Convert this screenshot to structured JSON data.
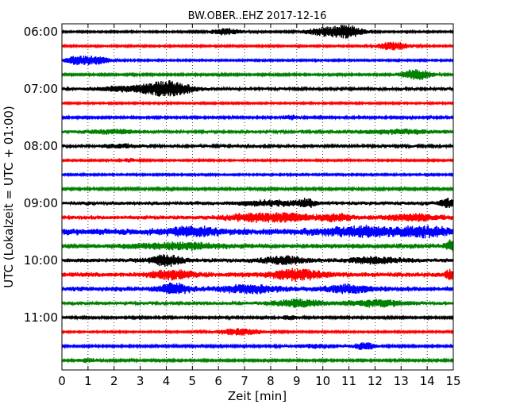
{
  "chart_data": {
    "type": "line",
    "title": "BW.OBER..EHZ 2017-12-16",
    "xlabel": "Zeit  [min]",
    "ylabel": "UTC (Lokalzeit = UTC + 01:00)",
    "xlim": [
      0,
      15
    ],
    "x_ticks": [
      "0",
      "1",
      "2",
      "3",
      "4",
      "5",
      "6",
      "7",
      "8",
      "9",
      "10",
      "11",
      "12",
      "13",
      "14",
      "15"
    ],
    "y_ticks": [
      {
        "label": "06:00",
        "row": 0
      },
      {
        "label": "07:00",
        "row": 4
      },
      {
        "label": "08:00",
        "row": 8
      },
      {
        "label": "09:00",
        "row": 12
      },
      {
        "label": "10:00",
        "row": 16
      },
      {
        "label": "11:00",
        "row": 20
      }
    ],
    "trace_interval_min": 15,
    "trace_colors": [
      "#000000",
      "#ff0000",
      "#0000ff",
      "#008000"
    ],
    "grid": "vertical-dotted",
    "traces": [
      {
        "start": "06:00",
        "base": 0.1,
        "events": [
          [
            6.3,
            0.6,
            0.45
          ],
          [
            10.1,
            0.8,
            0.55
          ],
          [
            11.0,
            0.6,
            0.7
          ]
        ]
      },
      {
        "start": "06:15",
        "base": 0.1,
        "events": [
          [
            12.7,
            0.6,
            0.55
          ]
        ]
      },
      {
        "start": "06:30",
        "base": 0.1,
        "events": [
          [
            0.6,
            0.5,
            0.55
          ],
          [
            1.4,
            0.5,
            0.5
          ]
        ]
      },
      {
        "start": "06:45",
        "base": 0.12,
        "events": [
          [
            13.6,
            0.6,
            0.7
          ]
        ]
      },
      {
        "start": "07:00",
        "base": 0.18,
        "events": [
          [
            4.1,
            0.9,
            0.95
          ],
          [
            2.5,
            1.2,
            0.3
          ]
        ]
      },
      {
        "start": "07:15",
        "base": 0.1,
        "events": []
      },
      {
        "start": "07:30",
        "base": 0.12,
        "events": [
          [
            8.8,
            0.3,
            0.3
          ]
        ]
      },
      {
        "start": "07:45",
        "base": 0.18,
        "events": [
          [
            2.0,
            1.0,
            0.25
          ],
          [
            13.0,
            1.5,
            0.25
          ]
        ]
      },
      {
        "start": "08:00",
        "base": 0.18,
        "events": [
          [
            2.2,
            0.6,
            0.25
          ]
        ]
      },
      {
        "start": "08:15",
        "base": 0.1,
        "events": [
          [
            2.6,
            0.3,
            0.25
          ]
        ]
      },
      {
        "start": "08:30",
        "base": 0.1,
        "events": []
      },
      {
        "start": "08:45",
        "base": 0.14,
        "events": []
      },
      {
        "start": "09:00",
        "base": 0.22,
        "events": [
          [
            9.4,
            0.3,
            0.45
          ],
          [
            14.8,
            0.3,
            0.6
          ],
          [
            8.0,
            1.2,
            0.3
          ]
        ]
      },
      {
        "start": "09:15",
        "base": 0.25,
        "events": [
          [
            7.3,
            1.0,
            0.45
          ],
          [
            8.8,
            0.8,
            0.4
          ],
          [
            10.5,
            0.7,
            0.4
          ],
          [
            13.5,
            1.0,
            0.4
          ]
        ]
      },
      {
        "start": "09:30",
        "base": 0.4,
        "events": [
          [
            5.0,
            0.8,
            0.5
          ],
          [
            11.5,
            1.5,
            0.5
          ],
          [
            14.0,
            1.0,
            0.45
          ]
        ]
      },
      {
        "start": "09:45",
        "base": 0.3,
        "events": [
          [
            14.9,
            0.2,
            0.6
          ],
          [
            4.5,
            1.5,
            0.35
          ]
        ]
      },
      {
        "start": "10:00",
        "base": 0.25,
        "events": [
          [
            4.0,
            0.6,
            0.7
          ],
          [
            8.5,
            0.8,
            0.45
          ],
          [
            12.0,
            1.0,
            0.35
          ]
        ]
      },
      {
        "start": "10:15",
        "base": 0.3,
        "events": [
          [
            4.2,
            0.8,
            0.5
          ],
          [
            9.0,
            1.0,
            0.6
          ],
          [
            14.9,
            0.2,
            0.6
          ]
        ]
      },
      {
        "start": "10:30",
        "base": 0.3,
        "events": [
          [
            4.3,
            0.6,
            0.6
          ],
          [
            7.2,
            1.0,
            0.45
          ],
          [
            11.0,
            0.8,
            0.45
          ]
        ]
      },
      {
        "start": "10:45",
        "base": 0.2,
        "events": [
          [
            9.0,
            1.0,
            0.45
          ],
          [
            12.0,
            1.2,
            0.4
          ]
        ]
      },
      {
        "start": "11:00",
        "base": 0.12,
        "events": [
          [
            8.7,
            0.4,
            0.25
          ]
        ]
      },
      {
        "start": "11:15",
        "base": 0.1,
        "events": [
          [
            6.8,
            0.9,
            0.45
          ]
        ]
      },
      {
        "start": "11:30",
        "base": 0.12,
        "events": [
          [
            11.6,
            0.4,
            0.5
          ],
          [
            9.8,
            1.0,
            0.25
          ]
        ]
      },
      {
        "start": "11:45",
        "base": 0.12,
        "events": [
          [
            1.0,
            0.4,
            0.25
          ]
        ]
      }
    ]
  }
}
